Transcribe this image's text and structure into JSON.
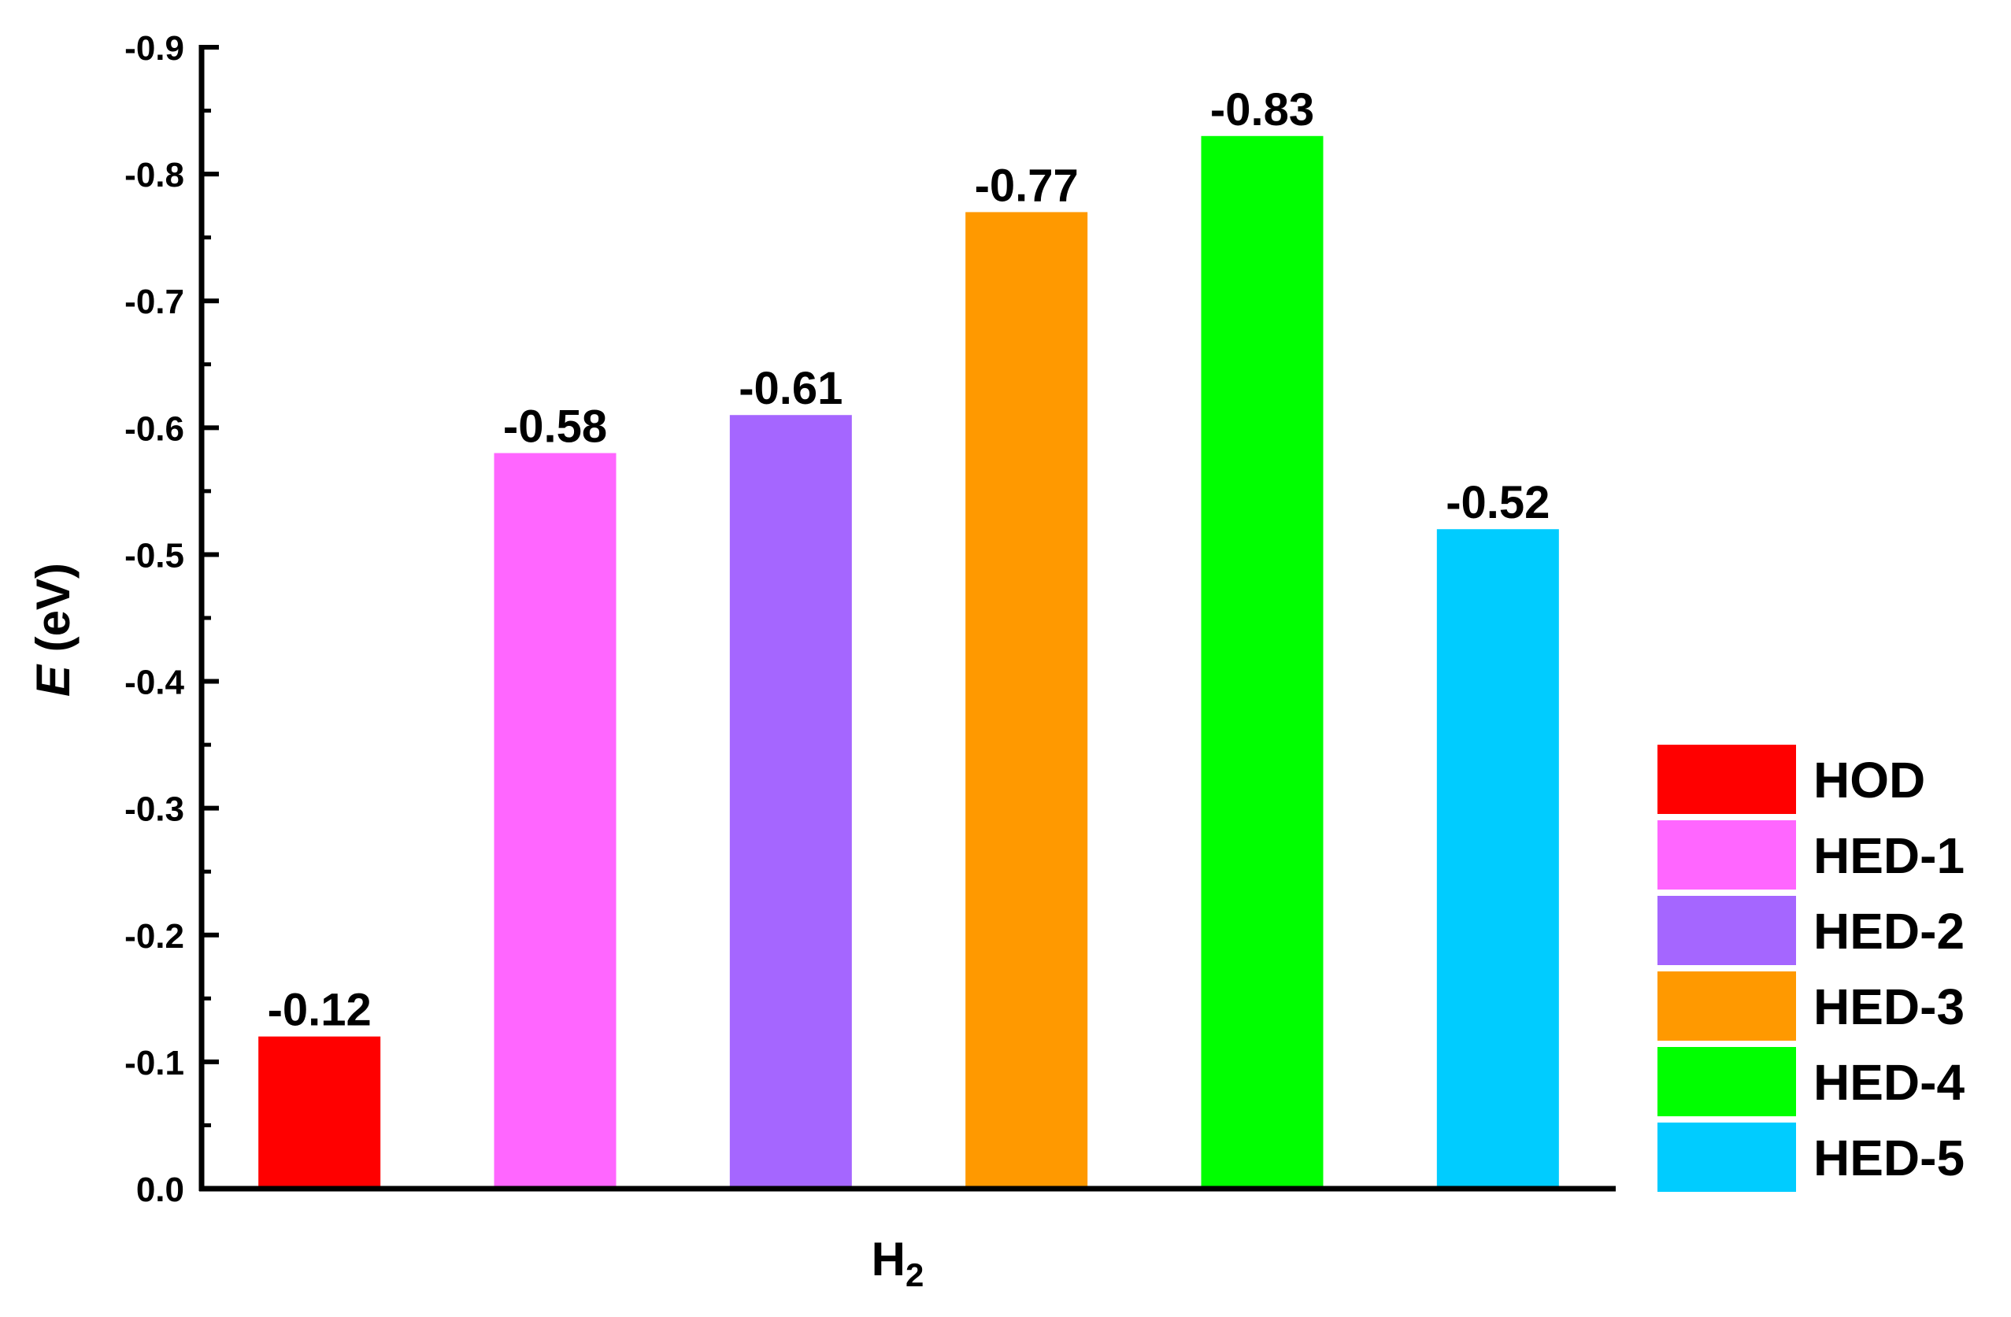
{
  "chart_data": {
    "type": "bar",
    "categories": [
      "H2"
    ],
    "xlabel": "H",
    "xlabel_subscript": "2",
    "ylabel_var": "E",
    "ylabel_unit": " (eV)",
    "ylim": [
      0.0,
      -0.9
    ],
    "y_ticks": [
      0.0,
      -0.1,
      -0.2,
      -0.3,
      -0.4,
      -0.5,
      -0.6,
      -0.7,
      -0.8,
      -0.9
    ],
    "y_tick_labels": [
      "0.0",
      "-0.1",
      "-0.2",
      "-0.3",
      "-0.4",
      "-0.5",
      "-0.6",
      "-0.7",
      "-0.8",
      "-0.9"
    ],
    "grid": false,
    "legend_position": "right-bottom",
    "series": [
      {
        "name": "HOD",
        "value": -0.12,
        "label": "-0.12",
        "color": "#ff0000"
      },
      {
        "name": "HED-1",
        "value": -0.58,
        "label": "-0.58",
        "color": "#ff66ff"
      },
      {
        "name": "HED-2",
        "value": -0.61,
        "label": "-0.61",
        "color": "#a566ff"
      },
      {
        "name": "HED-3",
        "value": -0.77,
        "label": "-0.77",
        "color": "#ff9900"
      },
      {
        "name": "HED-4",
        "value": -0.83,
        "label": "-0.83",
        "color": "#00ff00"
      },
      {
        "name": "HED-5",
        "value": -0.52,
        "label": "-0.52",
        "color": "#00ccff"
      }
    ]
  }
}
